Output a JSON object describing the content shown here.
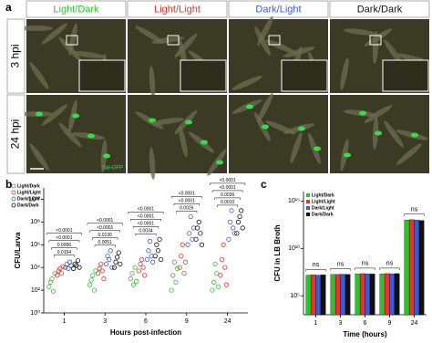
{
  "panel_a": {
    "label": "a",
    "columns": [
      {
        "label": "Light/Dark",
        "color": "#2fbf2f"
      },
      {
        "label": "Light/Light",
        "color": "#e8322c"
      },
      {
        "label": "Dark/Light",
        "color": "#3a5bd9"
      },
      {
        "label": "Dark/Dark",
        "color": "#111111"
      }
    ],
    "rows": [
      "3 hpi",
      "24 hpi"
    ],
    "marker_label": "Sal-GFP"
  },
  "chart_data": [
    {
      "type": "scatter",
      "panel_label": "b",
      "y_label": "CFU/Larva",
      "x_label": "Hours post-infection",
      "categories": [
        "1",
        "3",
        "6",
        "9",
        "24"
      ],
      "log_scale": true,
      "ylim": [
        1,
        100000000000
      ],
      "yticks": [
        {
          "value": 1,
          "label": "10⁰"
        },
        {
          "value": 100,
          "label": "10²"
        },
        {
          "value": 10000,
          "label": "10⁴"
        },
        {
          "value": 1000000,
          "label": "10⁶"
        },
        {
          "value": 100000000,
          "label": "10⁸"
        },
        {
          "value": 10000000000,
          "label": "10¹⁰"
        }
      ],
      "series": [
        {
          "name": "Light/Dark",
          "color": "#2fbf2f",
          "values": [
            [
              200,
              500,
              1000,
              80,
              3000
            ],
            [
              300,
              800,
              2000,
              100,
              5000
            ],
            [
              1000,
              3000,
              300,
              10000,
              600
            ],
            [
              100,
              2000,
              30000,
              500,
              8000
            ],
            [
              100,
              500,
              20000,
              3000,
              200
            ]
          ]
        },
        {
          "name": "Light/Light",
          "color": "#e8322c",
          "values": [
            [
              2000,
              5000,
              8000,
              3000,
              12000
            ],
            [
              3000,
              8000,
              20000,
              5000,
              1000
            ],
            [
              5000,
              20000,
              50000,
              10000,
              2000
            ],
            [
              10000,
              100000,
              1000000,
              3000,
              30000
            ],
            [
              2000,
              50000,
              1000000,
              10000,
              300
            ]
          ]
        },
        {
          "name": "Dark/Light",
          "color": "#3a5bd9",
          "values": [
            [
              10000,
              20000,
              8000,
              30000,
              15000
            ],
            [
              20000,
              100000,
              50000,
              300000,
              10000
            ],
            [
              50000,
              300000,
              2000000,
              100000,
              30000
            ],
            [
              1000000,
              10000000,
              300000000,
              3000000,
              30000000
            ],
            [
              3000000,
              100000000,
              1000000000,
              30000000,
              10000000
            ]
          ]
        },
        {
          "name": "Dark/Dark",
          "color": "#111111",
          "values": [
            [
              8000,
              20000,
              15000,
              40000,
              10000
            ],
            [
              10000,
              30000,
              80000,
              200000,
              20000
            ],
            [
              100000,
              1000000,
              300000,
              3000000,
              50000
            ],
            [
              3000000,
              30000000,
              100000000,
              10000000,
              1000000
            ],
            [
              10000000,
              100000000,
              300000000,
              1000000000,
              30000000
            ]
          ]
        }
      ],
      "annotations": [
        [
          "0.0154",
          "0.0006",
          "<0.0001",
          "<0.0001"
        ],
        [
          "0.0051",
          "0.0130",
          "<0.0001",
          "<0.0001"
        ],
        [
          "0.0034",
          "<0.0001",
          "<0.0001",
          "<0.0001"
        ],
        [
          "0.0026",
          "<0.0001",
          "<0.0001"
        ],
        [
          "0.0010",
          "0.0036",
          "<0.0001",
          "<0.0001"
        ]
      ]
    },
    {
      "type": "bar",
      "panel_label": "c",
      "y_label": "CFU in LB Broth",
      "x_label": "Time (hours)",
      "categories": [
        "1",
        "3",
        "6",
        "9",
        "24"
      ],
      "log_scale": true,
      "ylim": [
        1000,
        10000000000000000
      ],
      "yticks": [
        {
          "value": 100000,
          "label": "10⁵"
        },
        {
          "value": 10000000000,
          "label": "10¹⁰"
        },
        {
          "value": 1000000000000000,
          "label": "10¹⁵"
        }
      ],
      "series": [
        {
          "name": "Light/Dark",
          "color": "#2fbf2f",
          "values": [
            15000000,
            18000000,
            20000000,
            20000000,
            10000000000000
          ]
        },
        {
          "name": "Light/Light",
          "color": "#e8322c",
          "values": [
            16000000,
            18000000,
            22000000,
            22000000,
            11000000000000
          ]
        },
        {
          "name": "Dark/Light",
          "color": "#3a5bd9",
          "values": [
            15000000,
            19000000,
            21000000,
            21000000,
            10000000000000
          ]
        },
        {
          "name": "Dark/Dark",
          "color": "#111111",
          "values": [
            16000000,
            18000000,
            20000000,
            22000000,
            9000000000000
          ]
        }
      ],
      "annotations": [
        "ns",
        "ns",
        "ns",
        "ns",
        "ns"
      ]
    }
  ]
}
